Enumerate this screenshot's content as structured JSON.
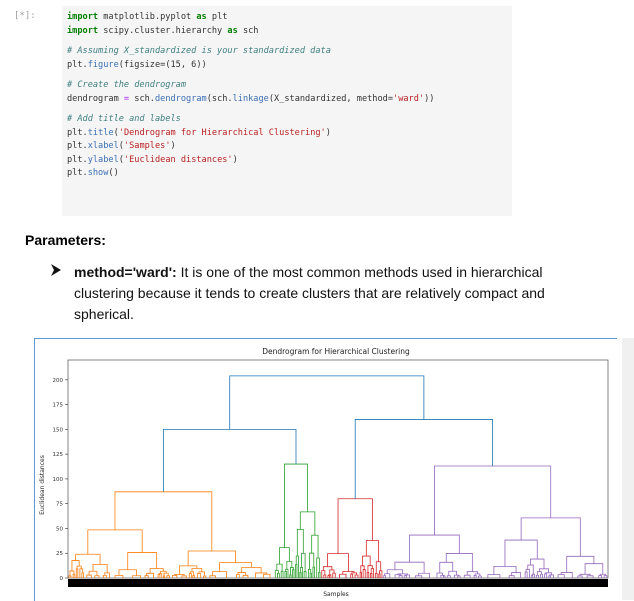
{
  "cell": {
    "prompt": "[*]:",
    "code": {
      "line1": {
        "kw1": "import",
        "mod": " matplotlib.pyplot ",
        "kw2": "as",
        "alias": " plt"
      },
      "line2": {
        "kw1": "import",
        "mod": " scipy.cluster.hierarchy ",
        "kw2": "as",
        "alias": " sch"
      },
      "line3": "# Assuming X_standardized is your standardized data",
      "line4": {
        "pre": "plt.",
        "fn": "figure",
        "args": "(figsize=(15, 6))"
      },
      "line5": "# Create the dendrogram",
      "line6": {
        "pre": "dendrogram ",
        "eq": "=",
        "mid": " sch.",
        "fn1": "dendrogram",
        "a1": "(sch.",
        "fn2": "linkage",
        "a2": "(X_standardized, method=",
        "str": "'ward'",
        "end": "))"
      },
      "line7": "# Add title and labels",
      "line8": {
        "pre": "plt.",
        "fn": "title",
        "open": "(",
        "str": "'Dendrogram for Hierarchical Clustering'",
        "close": ")"
      },
      "line9": {
        "pre": "plt.",
        "fn": "xlabel",
        "open": "(",
        "str": "'Samples'",
        "close": ")"
      },
      "line10": {
        "pre": "plt.",
        "fn": "ylabel",
        "open": "(",
        "str": "'Euclidean distances'",
        "close": ")"
      },
      "line11": {
        "pre": "plt.",
        "fn": "show",
        "close": "()"
      }
    }
  },
  "doc": {
    "heading": "Parameters:",
    "bullet_term": "method='ward':",
    "bullet_text": " It is one of the most common methods used in hierarchical clustering because it tends to create clusters that are relatively compact and spherical."
  },
  "colors": {
    "orange": "#ff7f0e",
    "green": "#2ca02c",
    "red": "#d62728",
    "purple": "#9467bd",
    "blue": "#1f77b4"
  },
  "chart_data": {
    "type": "dendrogram",
    "title": "Dendrogram for Hierarchical Clustering",
    "xlabel": "Samples",
    "ylabel": "Euclidean distances",
    "ylim": [
      0,
      220
    ],
    "yticks": [
      0,
      25,
      50,
      75,
      100,
      125,
      150,
      175,
      200
    ],
    "sample_count": 545,
    "merges": [
      {
        "x": [
          180,
          350
        ],
        "y": 204,
        "bottoms": [
          150,
          160
        ],
        "color": "#1f77b4"
      },
      {
        "x": [
          95,
          265
        ],
        "y": 150,
        "bottoms": [
          87,
          115
        ],
        "color": "#1f77b4"
      },
      {
        "x": [
          285,
          413
        ],
        "y": 160,
        "bottoms": [
          80,
          113
        ],
        "color": "#1f77b4"
      },
      {
        "x": [
          20,
          177
        ],
        "y": 87,
        "bottoms": [
          50,
          77
        ],
        "color": "#ff7f0e"
      },
      {
        "x": [
          240,
          290
        ],
        "y": 115,
        "bottoms": [
          113,
          45
        ],
        "color": "#2ca02c"
      },
      {
        "x": [
          260,
          300
        ],
        "y": 80,
        "bottoms": [
          55,
          60
        ],
        "color": "#d62728"
      },
      {
        "x": [
          345,
          500
        ],
        "y": 113,
        "bottoms": [
          110,
          80
        ],
        "color": "#9467bd"
      }
    ],
    "clusters": [
      {
        "name": "orange",
        "from": 0,
        "to": 208,
        "height": 87,
        "color": "#ff7f0e"
      },
      {
        "name": "green",
        "from": 208,
        "to": 255,
        "height": 115,
        "color": "#2ca02c"
      },
      {
        "name": "red",
        "from": 255,
        "to": 318,
        "height": 80,
        "color": "#d62728"
      },
      {
        "name": "purple",
        "from": 318,
        "to": 545,
        "height": 113,
        "color": "#9467bd"
      }
    ]
  }
}
